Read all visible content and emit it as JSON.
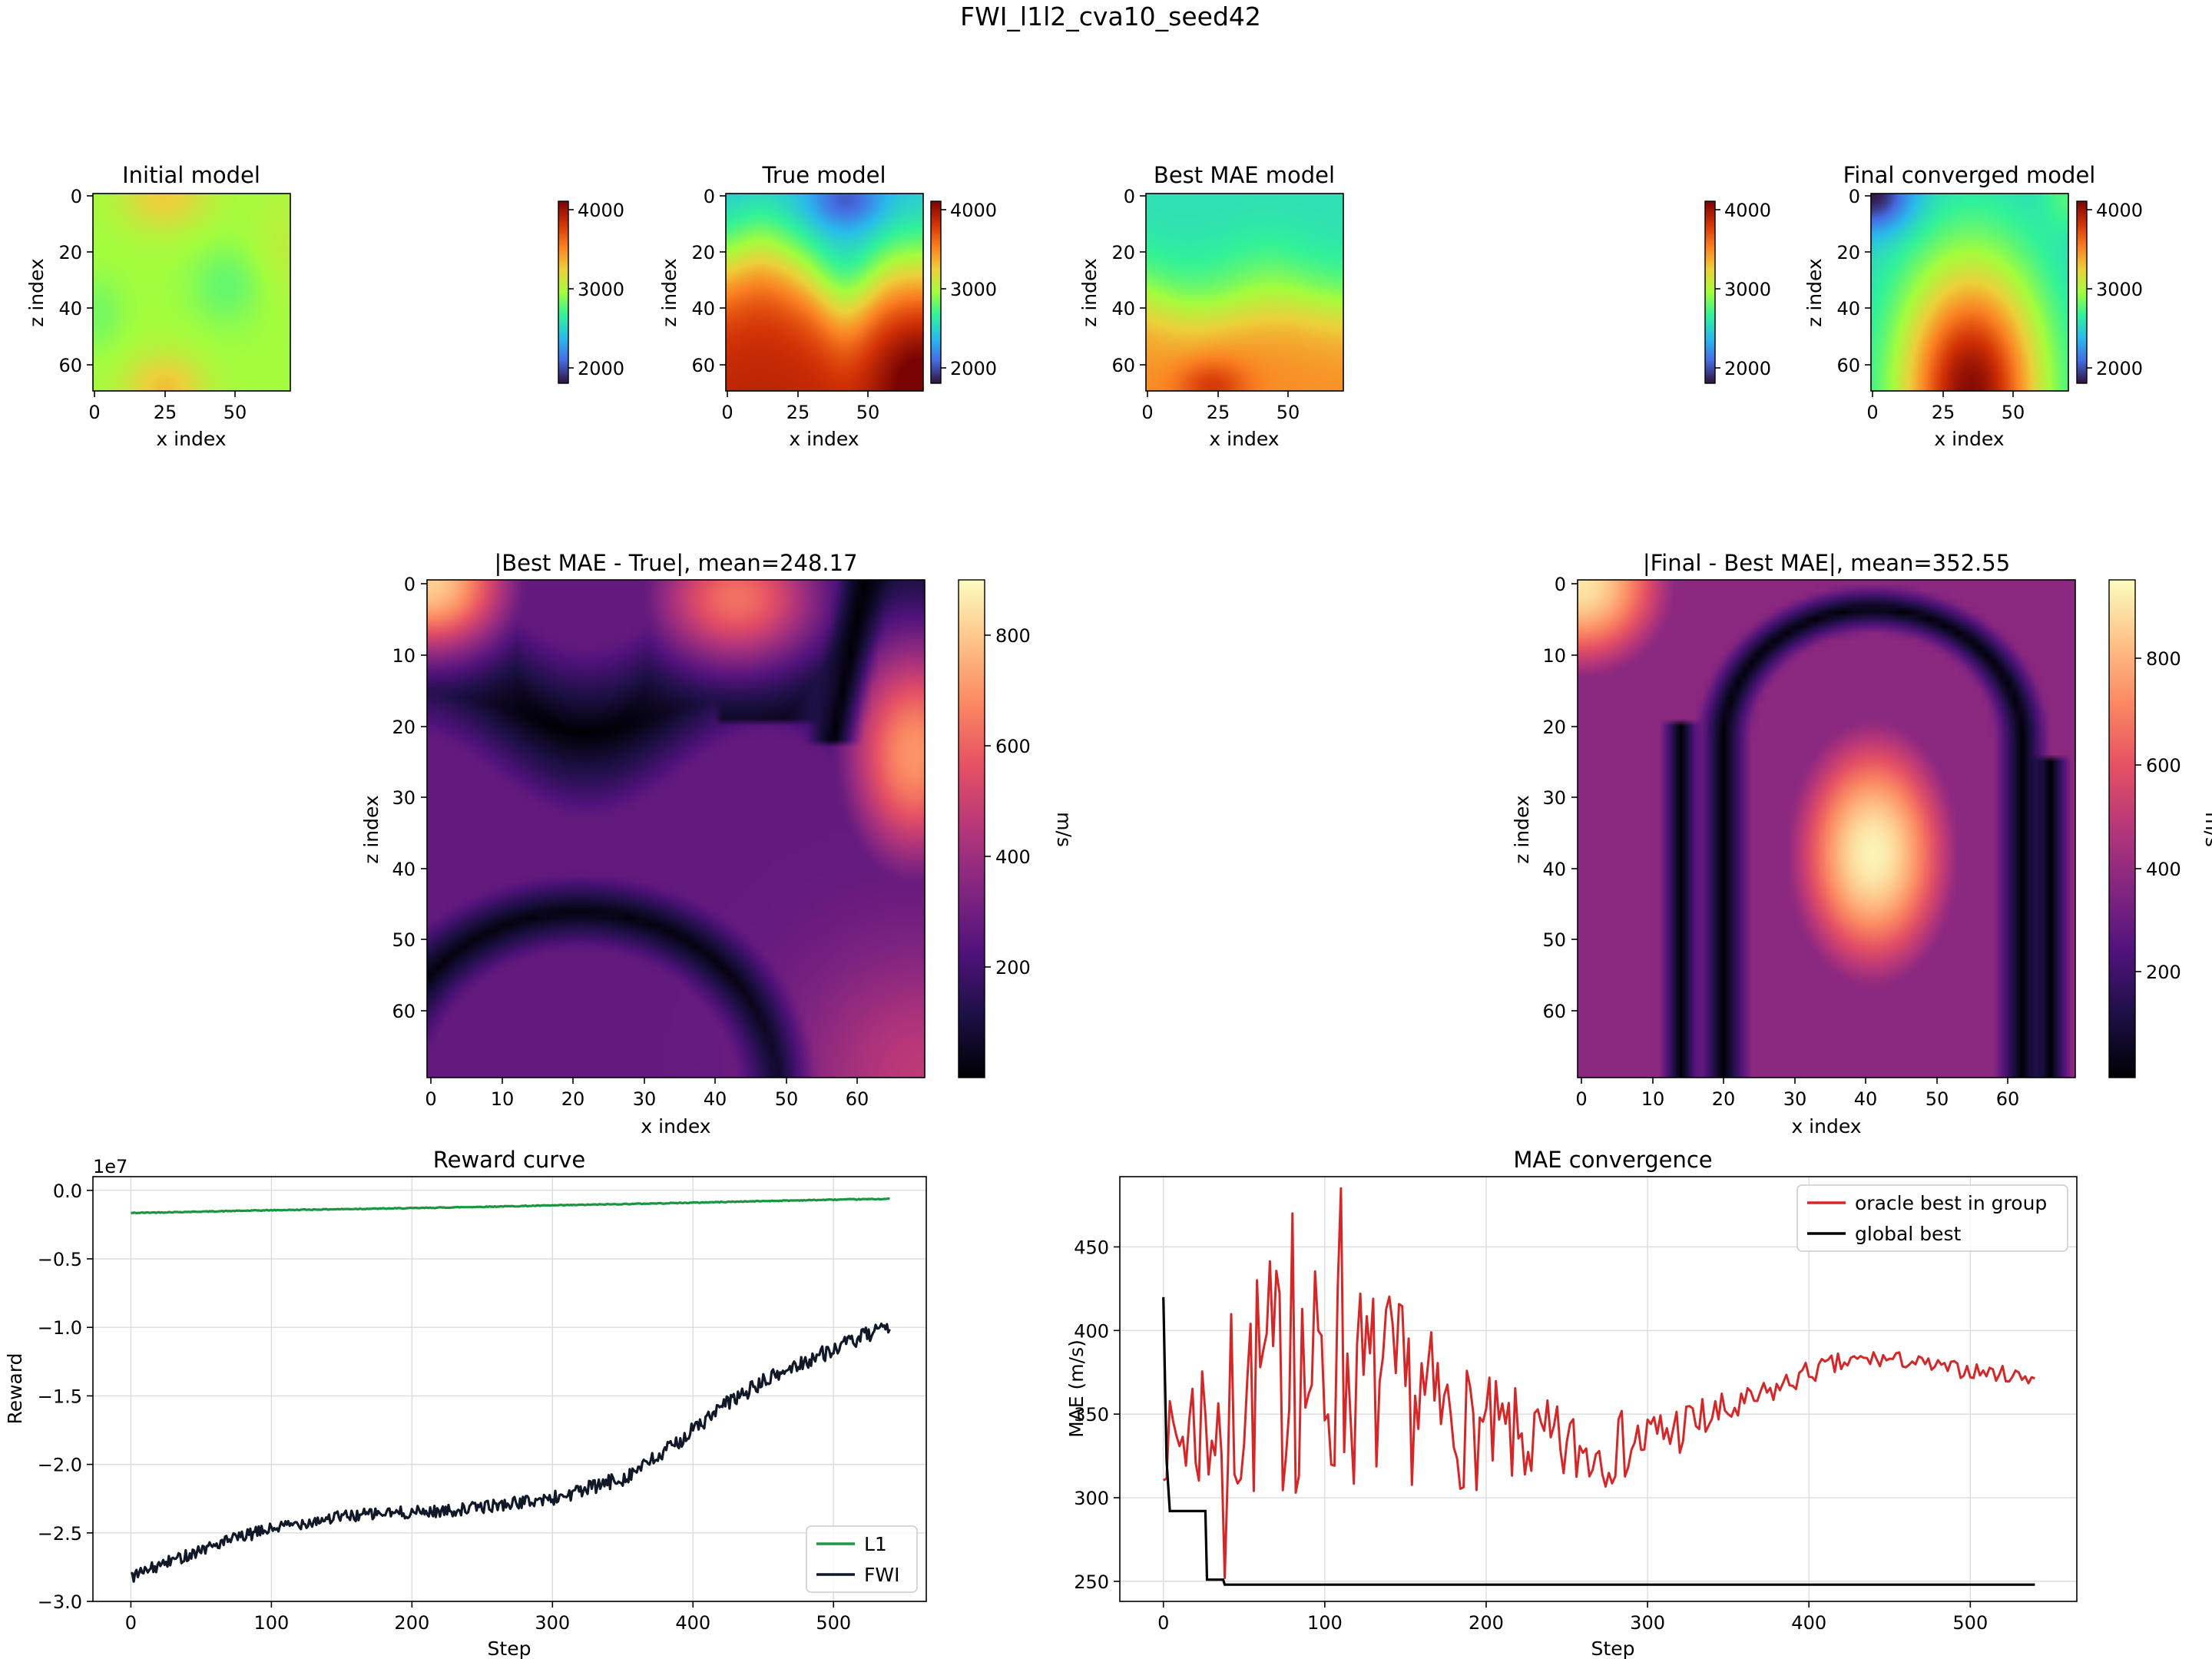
{
  "suptitle": "FWI_l1l2_cva10_seed42",
  "colors": {
    "l1": "#1a9641",
    "fwi": "#111827",
    "oracle": "#d62728",
    "global": "#000000",
    "grid": "#dcdcdc"
  },
  "chart_data": [
    {
      "type": "heatmap",
      "title": "Initial model",
      "xlabel": "x index",
      "ylabel": "z index",
      "colormap": "turbo",
      "xticks": [
        "0",
        "25",
        "50"
      ],
      "yticks": [
        "0",
        "20",
        "40",
        "60"
      ],
      "colorbar_range": [
        1800,
        4200
      ],
      "colorbar_ticks": [
        "2000",
        "3000",
        "4000"
      ],
      "grid_size": [
        70,
        70
      ]
    },
    {
      "type": "heatmap",
      "title": "True model",
      "xlabel": "x index",
      "ylabel": "z index",
      "colormap": "turbo",
      "xticks": [
        "0",
        "25",
        "50"
      ],
      "yticks": [
        "0",
        "20",
        "40",
        "60"
      ],
      "colorbar_range": [
        1800,
        4200
      ],
      "colorbar_ticks": [
        "2000",
        "3000",
        "4000"
      ],
      "grid_size": [
        70,
        70
      ]
    },
    {
      "type": "heatmap",
      "title": "Best MAE model",
      "xlabel": "x index",
      "ylabel": "z index",
      "colormap": "turbo",
      "xticks": [
        "0",
        "25",
        "50"
      ],
      "yticks": [
        "0",
        "20",
        "40",
        "60"
      ],
      "colorbar_range": [
        1800,
        4200
      ],
      "colorbar_ticks": [
        "2000",
        "3000",
        "4000"
      ],
      "grid_size": [
        70,
        70
      ]
    },
    {
      "type": "heatmap",
      "title": "Final converged model",
      "xlabel": "x index",
      "ylabel": "z index",
      "colormap": "turbo",
      "xticks": [
        "0",
        "25",
        "50"
      ],
      "yticks": [
        "0",
        "20",
        "40",
        "60"
      ],
      "colorbar_range": [
        1800,
        4200
      ],
      "colorbar_ticks": [
        "2000",
        "3000",
        "4000"
      ],
      "grid_size": [
        70,
        70
      ]
    },
    {
      "type": "heatmap",
      "title": "|Best MAE - True|, mean=248.17",
      "xlabel": "x index",
      "ylabel": "z index",
      "colormap": "magma",
      "xticks": [
        "0",
        "10",
        "20",
        "30",
        "40",
        "50",
        "60"
      ],
      "yticks": [
        "0",
        "10",
        "20",
        "30",
        "40",
        "50",
        "60"
      ],
      "colorbar_label": "m/s",
      "colorbar_range": [
        0,
        900
      ],
      "colorbar_ticks": [
        "200",
        "400",
        "600",
        "800"
      ],
      "grid_size": [
        70,
        70
      ]
    },
    {
      "type": "heatmap",
      "title": "|Final - Best MAE|, mean=352.55",
      "xlabel": "x index",
      "ylabel": "z index",
      "colormap": "magma",
      "xticks": [
        "0",
        "10",
        "20",
        "30",
        "40",
        "50",
        "60"
      ],
      "yticks": [
        "0",
        "10",
        "20",
        "30",
        "40",
        "50",
        "60"
      ],
      "colorbar_label": "m/s",
      "colorbar_range": [
        0,
        940
      ],
      "colorbar_ticks": [
        "200",
        "400",
        "600",
        "800"
      ],
      "grid_size": [
        70,
        70
      ]
    },
    {
      "type": "line",
      "title": "Reward curve",
      "xlabel": "Step",
      "ylabel": "Reward",
      "offset_label": "1e7",
      "xlim": [
        -27,
        566
      ],
      "ylim": [
        -3.0,
        0.1
      ],
      "xticks": [
        0,
        100,
        200,
        300,
        400,
        500
      ],
      "yticks": [
        0.0,
        -0.5,
        -1.0,
        -1.5,
        -2.0,
        -2.5,
        -3.0
      ],
      "ytick_labels": [
        "0.0",
        "−0.5",
        "−1.0",
        "−1.5",
        "−2.0",
        "−2.5",
        "−3.0"
      ],
      "grid": true,
      "legend_position": "lower-right",
      "series": [
        {
          "name": "L1",
          "x": [
            0,
            50,
            100,
            150,
            200,
            250,
            300,
            350,
            400,
            450,
            500,
            540
          ],
          "values": [
            -0.165,
            -0.155,
            -0.145,
            -0.137,
            -0.13,
            -0.12,
            -0.11,
            -0.1,
            -0.09,
            -0.078,
            -0.068,
            -0.062
          ]
        },
        {
          "name": "FWI",
          "x": [
            0,
            25,
            50,
            75,
            100,
            125,
            150,
            175,
            200,
            225,
            250,
            275,
            300,
            325,
            350,
            375,
            400,
            425,
            450,
            475,
            500,
            525,
            540
          ],
          "values": [
            -2.82,
            -2.72,
            -2.62,
            -2.54,
            -2.47,
            -2.42,
            -2.38,
            -2.36,
            -2.35,
            -2.34,
            -2.31,
            -2.28,
            -2.25,
            -2.18,
            -2.1,
            -1.95,
            -1.75,
            -1.55,
            -1.4,
            -1.27,
            -1.16,
            -1.05,
            -1.02
          ]
        }
      ]
    },
    {
      "type": "line",
      "title": "MAE convergence",
      "xlabel": "Step",
      "ylabel": "MAE (m/s)",
      "xlim": [
        -27,
        566
      ],
      "ylim": [
        238,
        492
      ],
      "xticks": [
        0,
        100,
        200,
        300,
        400,
        500
      ],
      "yticks": [
        250,
        300,
        350,
        400,
        450
      ],
      "grid": true,
      "legend_position": "upper-right",
      "series": [
        {
          "name": "oracle best in group",
          "x": [
            0,
            20,
            40,
            60,
            80,
            100,
            120,
            140,
            160,
            180,
            200,
            220,
            240,
            260,
            280,
            300,
            320,
            340,
            360,
            380,
            400,
            420,
            440,
            460,
            480,
            500,
            520,
            540
          ],
          "values": [
            330,
            345,
            355,
            370,
            375,
            370,
            368,
            365,
            358,
            345,
            338,
            335,
            330,
            328,
            330,
            335,
            342,
            348,
            355,
            365,
            375,
            380,
            383,
            382,
            378,
            376,
            374,
            372
          ],
          "amplitude": [
            20,
            50,
            70,
            75,
            75,
            70,
            65,
            60,
            50,
            40,
            35,
            30,
            28,
            25,
            22,
            20,
            18,
            14,
            10,
            8,
            7,
            7,
            6,
            5,
            5,
            5,
            5,
            5
          ]
        },
        {
          "name": "global best",
          "x": [
            0,
            2,
            4,
            26,
            27,
            37,
            38,
            540
          ],
          "values": [
            420,
            322,
            292,
            292,
            251,
            251,
            248,
            248
          ]
        }
      ]
    }
  ]
}
